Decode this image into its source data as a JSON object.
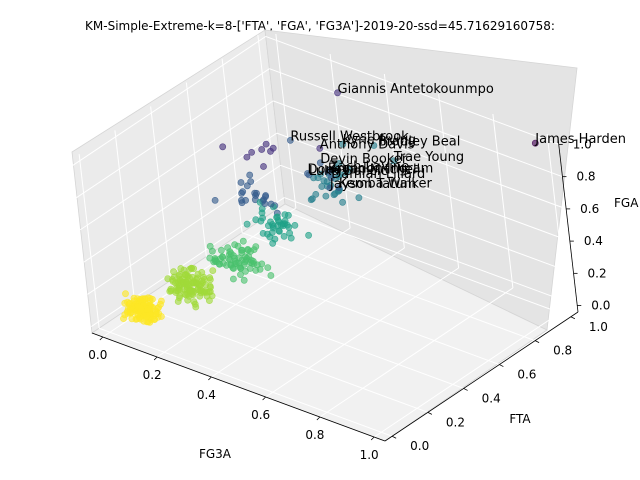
{
  "chart_data": {
    "type": "scatter",
    "projection": "3d",
    "title": "KM-Simple-Extreme-k=8-['FTA', 'FGA', 'FG3A']-2019-20-ssd=45.71629160758:",
    "xlabel": "FG3A",
    "ylabel": "FTA",
    "zlabel": "FGA",
    "xlim": [
      0,
      1
    ],
    "ylim": [
      0,
      1
    ],
    "zlim": [
      0,
      1
    ],
    "xticks": [
      "0.0",
      "0.2",
      "0.4",
      "0.6",
      "0.8",
      "1.0"
    ],
    "yticks": [
      "0.0",
      "0.2",
      "0.4",
      "0.6",
      "0.8",
      "1.0"
    ],
    "zticks": [
      "0.0",
      "0.2",
      "0.4",
      "0.6",
      "0.8",
      "1.0"
    ],
    "grid": true,
    "colormap": "viridis",
    "cluster_colors": [
      "#440154",
      "#46327e",
      "#365c8d",
      "#277f8e",
      "#1fa187",
      "#4ac16d",
      "#a0da39",
      "#fde725"
    ],
    "labeled_points": [
      {
        "name": "James Harden",
        "x": 0.98,
        "y": 1.0,
        "z": 1.0,
        "cluster": 0
      },
      {
        "name": "Giannis Antetokounmpo",
        "x": 0.3,
        "y": 0.92,
        "z": 0.95,
        "cluster": 1
      },
      {
        "name": "Kyrie Irving",
        "x": 0.52,
        "y": 0.62,
        "z": 0.99,
        "cluster": 3
      },
      {
        "name": "Bradley Beal",
        "x": 0.58,
        "y": 0.7,
        "z": 0.96,
        "cluster": 3
      },
      {
        "name": "Trae Young",
        "x": 0.62,
        "y": 0.74,
        "z": 0.86,
        "cluster": 3
      },
      {
        "name": "Damian Lillard",
        "x": 0.52,
        "y": 0.54,
        "z": 0.84,
        "cluster": 2
      },
      {
        "name": "Devin Booker",
        "x": 0.44,
        "y": 0.6,
        "z": 0.84,
        "cluster": 2
      },
      {
        "name": "Luka Doncic",
        "x": 0.45,
        "y": 0.52,
        "z": 0.83,
        "cluster": 2
      },
      {
        "name": "Russell Westbrook",
        "x": 0.32,
        "y": 0.62,
        "z": 0.89,
        "cluster": 2
      },
      {
        "name": "Zach LaVine",
        "x": 0.5,
        "y": 0.56,
        "z": 0.86,
        "cluster": 2
      },
      {
        "name": "Kemba Walker",
        "x": 0.56,
        "y": 0.52,
        "z": 0.82,
        "cluster": 2
      },
      {
        "name": "Jayson Tatum",
        "x": 0.54,
        "y": 0.5,
        "z": 0.82,
        "cluster": 2
      },
      {
        "name": "Donovan Mitchell",
        "x": 0.46,
        "y": 0.5,
        "z": 0.86,
        "cluster": 2
      },
      {
        "name": "Anthony Davis",
        "x": 0.4,
        "y": 0.66,
        "z": 0.86,
        "cluster": 1
      },
      {
        "name": "Brandon Ingram",
        "x": 0.48,
        "y": 0.58,
        "z": 0.82,
        "cluster": 2
      }
    ],
    "point_counts_per_cluster": [
      0,
      8,
      22,
      28,
      40,
      70,
      110,
      130
    ]
  }
}
